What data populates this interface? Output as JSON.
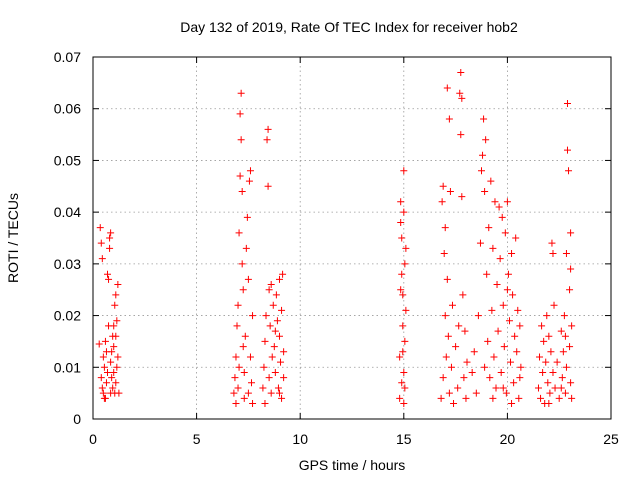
{
  "chart_data": {
    "type": "scatter",
    "title": "Day 132 of 2019, Rate Of TEC Index for receiver hob2",
    "xlabel": "GPS time / hours",
    "ylabel": "ROTI / TECUs",
    "xlim": [
      0,
      25
    ],
    "ylim": [
      0,
      0.07
    ],
    "xticks": [
      "0",
      "5",
      "10",
      "15",
      "20",
      "25"
    ],
    "yticks": [
      "0",
      "0.01",
      "0.02",
      "0.03",
      "0.04",
      "0.05",
      "0.06",
      "0.07"
    ],
    "grid": true,
    "marker": "+",
    "color": "#ff0000",
    "series": [
      {
        "points": [
          [
            0.3,
            0.0145
          ],
          [
            0.35,
            0.037
          ],
          [
            0.4,
            0.034
          ],
          [
            0.45,
            0.031
          ],
          [
            0.4,
            0.008
          ],
          [
            0.45,
            0.006
          ],
          [
            0.5,
            0.005
          ],
          [
            0.5,
            0.012
          ],
          [
            0.55,
            0.01
          ],
          [
            0.6,
            0.004
          ],
          [
            0.6,
            0.015
          ],
          [
            0.65,
            0.007
          ],
          [
            0.7,
            0.009
          ],
          [
            0.7,
            0.028
          ],
          [
            0.75,
            0.027
          ],
          [
            0.75,
            0.018
          ],
          [
            0.8,
            0.033
          ],
          [
            0.8,
            0.035
          ],
          [
            0.85,
            0.036
          ],
          [
            0.85,
            0.011
          ],
          [
            0.9,
            0.013
          ],
          [
            0.9,
            0.008
          ],
          [
            0.95,
            0.006
          ],
          [
            0.95,
            0.016
          ],
          [
            1.0,
            0.018
          ],
          [
            1.0,
            0.009
          ],
          [
            1.05,
            0.022
          ],
          [
            1.05,
            0.005
          ],
          [
            1.1,
            0.024
          ],
          [
            1.1,
            0.007
          ],
          [
            1.15,
            0.01
          ],
          [
            1.15,
            0.019
          ],
          [
            1.2,
            0.026
          ],
          [
            1.2,
            0.012
          ],
          [
            1.25,
            0.005
          ],
          [
            0.55,
            0.004
          ],
          [
            0.65,
            0.013
          ],
          [
            0.85,
            0.005
          ],
          [
            1.0,
            0.014
          ],
          [
            1.1,
            0.016
          ],
          [
            6.8,
            0.005
          ],
          [
            6.85,
            0.008
          ],
          [
            6.9,
            0.012
          ],
          [
            6.9,
            0.003
          ],
          [
            6.95,
            0.018
          ],
          [
            7.0,
            0.022
          ],
          [
            7.0,
            0.006
          ],
          [
            7.05,
            0.01
          ],
          [
            7.05,
            0.036
          ],
          [
            7.1,
            0.047
          ],
          [
            7.1,
            0.059
          ],
          [
            7.15,
            0.063
          ],
          [
            7.15,
            0.054
          ],
          [
            7.2,
            0.044
          ],
          [
            7.2,
            0.03
          ],
          [
            7.25,
            0.025
          ],
          [
            7.25,
            0.014
          ],
          [
            7.3,
            0.004
          ],
          [
            7.3,
            0.009
          ],
          [
            7.35,
            0.016
          ],
          [
            7.4,
            0.033
          ],
          [
            7.45,
            0.039
          ],
          [
            7.5,
            0.027
          ],
          [
            7.55,
            0.046
          ],
          [
            7.6,
            0.048
          ],
          [
            7.6,
            0.012
          ],
          [
            7.65,
            0.007
          ],
          [
            7.7,
            0.02
          ],
          [
            7.7,
            0.003
          ],
          [
            7.5,
            0.005
          ],
          [
            8.2,
            0.006
          ],
          [
            8.25,
            0.01
          ],
          [
            8.3,
            0.015
          ],
          [
            8.3,
            0.003
          ],
          [
            8.35,
            0.02
          ],
          [
            8.4,
            0.054
          ],
          [
            8.45,
            0.056
          ],
          [
            8.45,
            0.045
          ],
          [
            8.5,
            0.025
          ],
          [
            8.5,
            0.008
          ],
          [
            8.55,
            0.018
          ],
          [
            8.6,
            0.026
          ],
          [
            8.65,
            0.012
          ],
          [
            8.7,
            0.022
          ],
          [
            8.75,
            0.014
          ],
          [
            8.8,
            0.009
          ],
          [
            8.85,
            0.024
          ],
          [
            8.9,
            0.019
          ],
          [
            8.95,
            0.006
          ],
          [
            9.0,
            0.027
          ],
          [
            9.0,
            0.016
          ],
          [
            9.05,
            0.011
          ],
          [
            9.1,
            0.021
          ],
          [
            9.1,
            0.004
          ],
          [
            9.15,
            0.028
          ],
          [
            9.2,
            0.013
          ],
          [
            9.2,
            0.008
          ],
          [
            8.6,
            0.005
          ],
          [
            8.8,
            0.017
          ],
          [
            9.0,
            0.005
          ],
          [
            14.8,
            0.004
          ],
          [
            14.8,
            0.012
          ],
          [
            14.85,
            0.042
          ],
          [
            14.85,
            0.038
          ],
          [
            14.9,
            0.035
          ],
          [
            14.9,
            0.028
          ],
          [
            14.95,
            0.024
          ],
          [
            14.95,
            0.018
          ],
          [
            15.0,
            0.048
          ],
          [
            15.0,
            0.009
          ],
          [
            15.05,
            0.006
          ],
          [
            15.05,
            0.015
          ],
          [
            15.1,
            0.033
          ],
          [
            15.1,
            0.021
          ],
          [
            15.0,
            0.003
          ],
          [
            14.9,
            0.007
          ],
          [
            15.0,
            0.04
          ],
          [
            14.95,
            0.013
          ],
          [
            14.85,
            0.025
          ],
          [
            15.05,
            0.03
          ],
          [
            16.8,
            0.004
          ],
          [
            16.85,
            0.042
          ],
          [
            16.9,
            0.045
          ],
          [
            16.9,
            0.008
          ],
          [
            16.95,
            0.032
          ],
          [
            17.0,
            0.037
          ],
          [
            17.0,
            0.02
          ],
          [
            17.05,
            0.012
          ],
          [
            17.1,
            0.064
          ],
          [
            17.1,
            0.027
          ],
          [
            17.15,
            0.016
          ],
          [
            17.2,
            0.058
          ],
          [
            17.2,
            0.005
          ],
          [
            17.25,
            0.044
          ],
          [
            17.3,
            0.01
          ],
          [
            17.35,
            0.022
          ],
          [
            17.4,
            0.003
          ],
          [
            17.5,
            0.014
          ],
          [
            17.6,
            0.006
          ],
          [
            17.65,
            0.018
          ],
          [
            17.7,
            0.063
          ],
          [
            17.75,
            0.067
          ],
          [
            17.75,
            0.055
          ],
          [
            17.8,
            0.062
          ],
          [
            17.8,
            0.043
          ],
          [
            17.85,
            0.024
          ],
          [
            17.9,
            0.008
          ],
          [
            17.95,
            0.017
          ],
          [
            18.0,
            0.004
          ],
          [
            18.05,
            0.011
          ],
          [
            18.3,
            0.009
          ],
          [
            18.4,
            0.013
          ],
          [
            18.5,
            0.005
          ],
          [
            18.6,
            0.02
          ],
          [
            18.7,
            0.034
          ],
          [
            18.75,
            0.048
          ],
          [
            18.8,
            0.051
          ],
          [
            18.85,
            0.058
          ],
          [
            18.9,
            0.044
          ],
          [
            18.95,
            0.054
          ],
          [
            19.0,
            0.028
          ],
          [
            19.05,
            0.015
          ],
          [
            19.1,
            0.037
          ],
          [
            19.15,
            0.008
          ],
          [
            19.2,
            0.046
          ],
          [
            19.25,
            0.021
          ],
          [
            19.3,
            0.033
          ],
          [
            19.35,
            0.012
          ],
          [
            19.4,
            0.042
          ],
          [
            19.45,
            0.006
          ],
          [
            19.5,
            0.026
          ],
          [
            19.55,
            0.017
          ],
          [
            19.6,
            0.041
          ],
          [
            19.65,
            0.031
          ],
          [
            19.7,
            0.009
          ],
          [
            19.75,
            0.039
          ],
          [
            19.8,
            0.022
          ],
          [
            19.85,
            0.014
          ],
          [
            19.9,
            0.036
          ],
          [
            19.95,
            0.005
          ],
          [
            20.0,
            0.042
          ],
          [
            20.05,
            0.028
          ],
          [
            20.1,
            0.019
          ],
          [
            20.15,
            0.011
          ],
          [
            20.2,
            0.032
          ],
          [
            20.25,
            0.024
          ],
          [
            20.3,
            0.007
          ],
          [
            20.35,
            0.016
          ],
          [
            20.4,
            0.035
          ],
          [
            20.45,
            0.013
          ],
          [
            20.5,
            0.021
          ],
          [
            20.55,
            0.004
          ],
          [
            20.6,
            0.018
          ],
          [
            20.65,
            0.01
          ],
          [
            19.3,
            0.004
          ],
          [
            19.8,
            0.006
          ],
          [
            20.2,
            0.003
          ],
          [
            18.9,
            0.01
          ],
          [
            20.0,
            0.025
          ],
          [
            20.6,
            0.008
          ],
          [
            21.5,
            0.006
          ],
          [
            21.55,
            0.012
          ],
          [
            21.6,
            0.004
          ],
          [
            21.65,
            0.018
          ],
          [
            21.7,
            0.009
          ],
          [
            21.75,
            0.015
          ],
          [
            21.8,
            0.003
          ],
          [
            21.85,
            0.011
          ],
          [
            21.9,
            0.02
          ],
          [
            21.95,
            0.007
          ],
          [
            22.0,
            0.016
          ],
          [
            22.05,
            0.005
          ],
          [
            22.1,
            0.013
          ],
          [
            22.15,
            0.034
          ],
          [
            22.2,
            0.032
          ],
          [
            22.2,
            0.009
          ],
          [
            22.25,
            0.022
          ],
          [
            22.3,
            0.006
          ],
          [
            22.4,
            0.011
          ],
          [
            22.5,
            0.004
          ],
          [
            22.6,
            0.017
          ],
          [
            22.65,
            0.008
          ],
          [
            22.7,
            0.013
          ],
          [
            22.75,
            0.02
          ],
          [
            22.8,
            0.005
          ],
          [
            22.85,
            0.032
          ],
          [
            22.85,
            0.01
          ],
          [
            22.9,
            0.052
          ],
          [
            22.9,
            0.061
          ],
          [
            22.95,
            0.048
          ],
          [
            23.0,
            0.025
          ],
          [
            23.0,
            0.014
          ],
          [
            23.05,
            0.036
          ],
          [
            23.05,
            0.007
          ],
          [
            23.1,
            0.018
          ],
          [
            23.1,
            0.004
          ],
          [
            22.8,
            0.016
          ],
          [
            22.6,
            0.006
          ],
          [
            22.0,
            0.003
          ],
          [
            23.05,
            0.029
          ]
        ]
      }
    ]
  }
}
